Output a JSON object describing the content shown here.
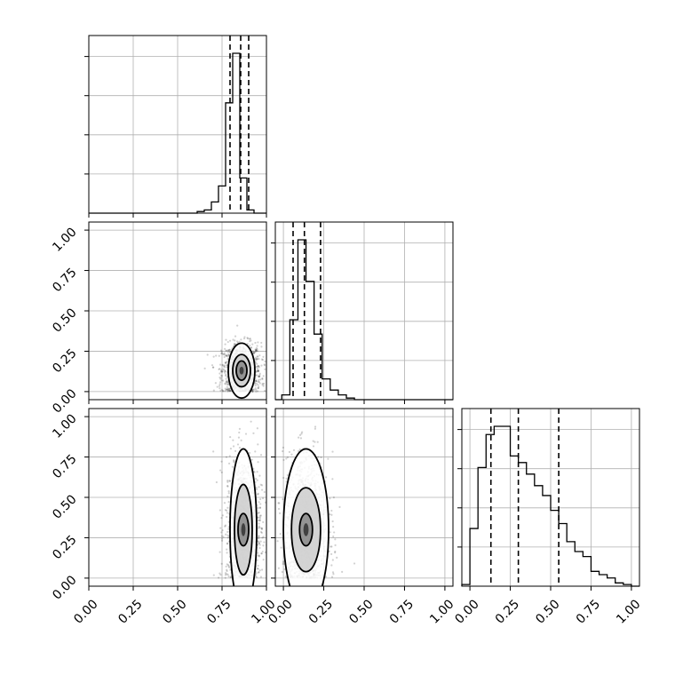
{
  "chart_data": {
    "type": "corner",
    "grid": true,
    "tick_labels": [
      "0.00",
      "0.25",
      "0.50",
      "0.75",
      "1.00"
    ],
    "parameters": [
      {
        "range": [
          0,
          1
        ],
        "quantiles": [
          0.795,
          0.855,
          0.9
        ],
        "histogram": {
          "bins": [
            0.61,
            0.65,
            0.69,
            0.73,
            0.77,
            0.81,
            0.85,
            0.89,
            0.93
          ],
          "counts": [
            0.01,
            0.02,
            0.07,
            0.17,
            0.69,
            1.0,
            0.22,
            0.02
          ]
        }
      },
      {
        "range": [
          -0.05,
          1.05
        ],
        "quantiles": [
          0.06,
          0.13,
          0.23
        ],
        "histogram": {
          "bins": [
            -0.01,
            0.04,
            0.09,
            0.14,
            0.19,
            0.24,
            0.29,
            0.34,
            0.39,
            0.44
          ],
          "counts": [
            0.03,
            0.5,
            1.0,
            0.74,
            0.41,
            0.13,
            0.06,
            0.03,
            0.01
          ]
        }
      },
      {
        "range": [
          -0.05,
          1.05
        ],
        "quantiles": [
          0.13,
          0.3,
          0.55
        ],
        "histogram": {
          "bins": [
            -0.05,
            0.0,
            0.05,
            0.1,
            0.15,
            0.2,
            0.25,
            0.3,
            0.35,
            0.4,
            0.45,
            0.5,
            0.55,
            0.6,
            0.65,
            0.7,
            0.75,
            0.8,
            0.85,
            0.9,
            0.95,
            1.0
          ],
          "counts": [
            0.01,
            0.35,
            0.72,
            0.92,
            0.97,
            0.97,
            0.79,
            0.75,
            0.68,
            0.61,
            0.55,
            0.46,
            0.38,
            0.27,
            0.21,
            0.18,
            0.09,
            0.07,
            0.05,
            0.02,
            0.01
          ]
        }
      }
    ],
    "joint_panels": [
      {
        "x_param": 0,
        "y_param": 1,
        "center": [
          0.86,
          0.13
        ],
        "spread": [
          0.055,
          0.085
        ],
        "contour_radii": [
          [
            0.03,
            0.06
          ],
          [
            0.05,
            0.1
          ],
          [
            0.075,
            0.17
          ]
        ]
      },
      {
        "x_param": 0,
        "y_param": 2,
        "center": [
          0.87,
          0.3
        ],
        "spread": [
          0.05,
          0.23
        ],
        "contour_radii": [
          [
            0.03,
            0.1
          ],
          [
            0.05,
            0.28
          ],
          [
            0.075,
            0.5
          ]
        ]
      },
      {
        "x_param": 1,
        "y_param": 2,
        "center": [
          0.14,
          0.3
        ],
        "spread": [
          0.07,
          0.23
        ],
        "contour_radii": [
          [
            0.04,
            0.1
          ],
          [
            0.09,
            0.26
          ],
          [
            0.14,
            0.5
          ]
        ]
      }
    ]
  }
}
